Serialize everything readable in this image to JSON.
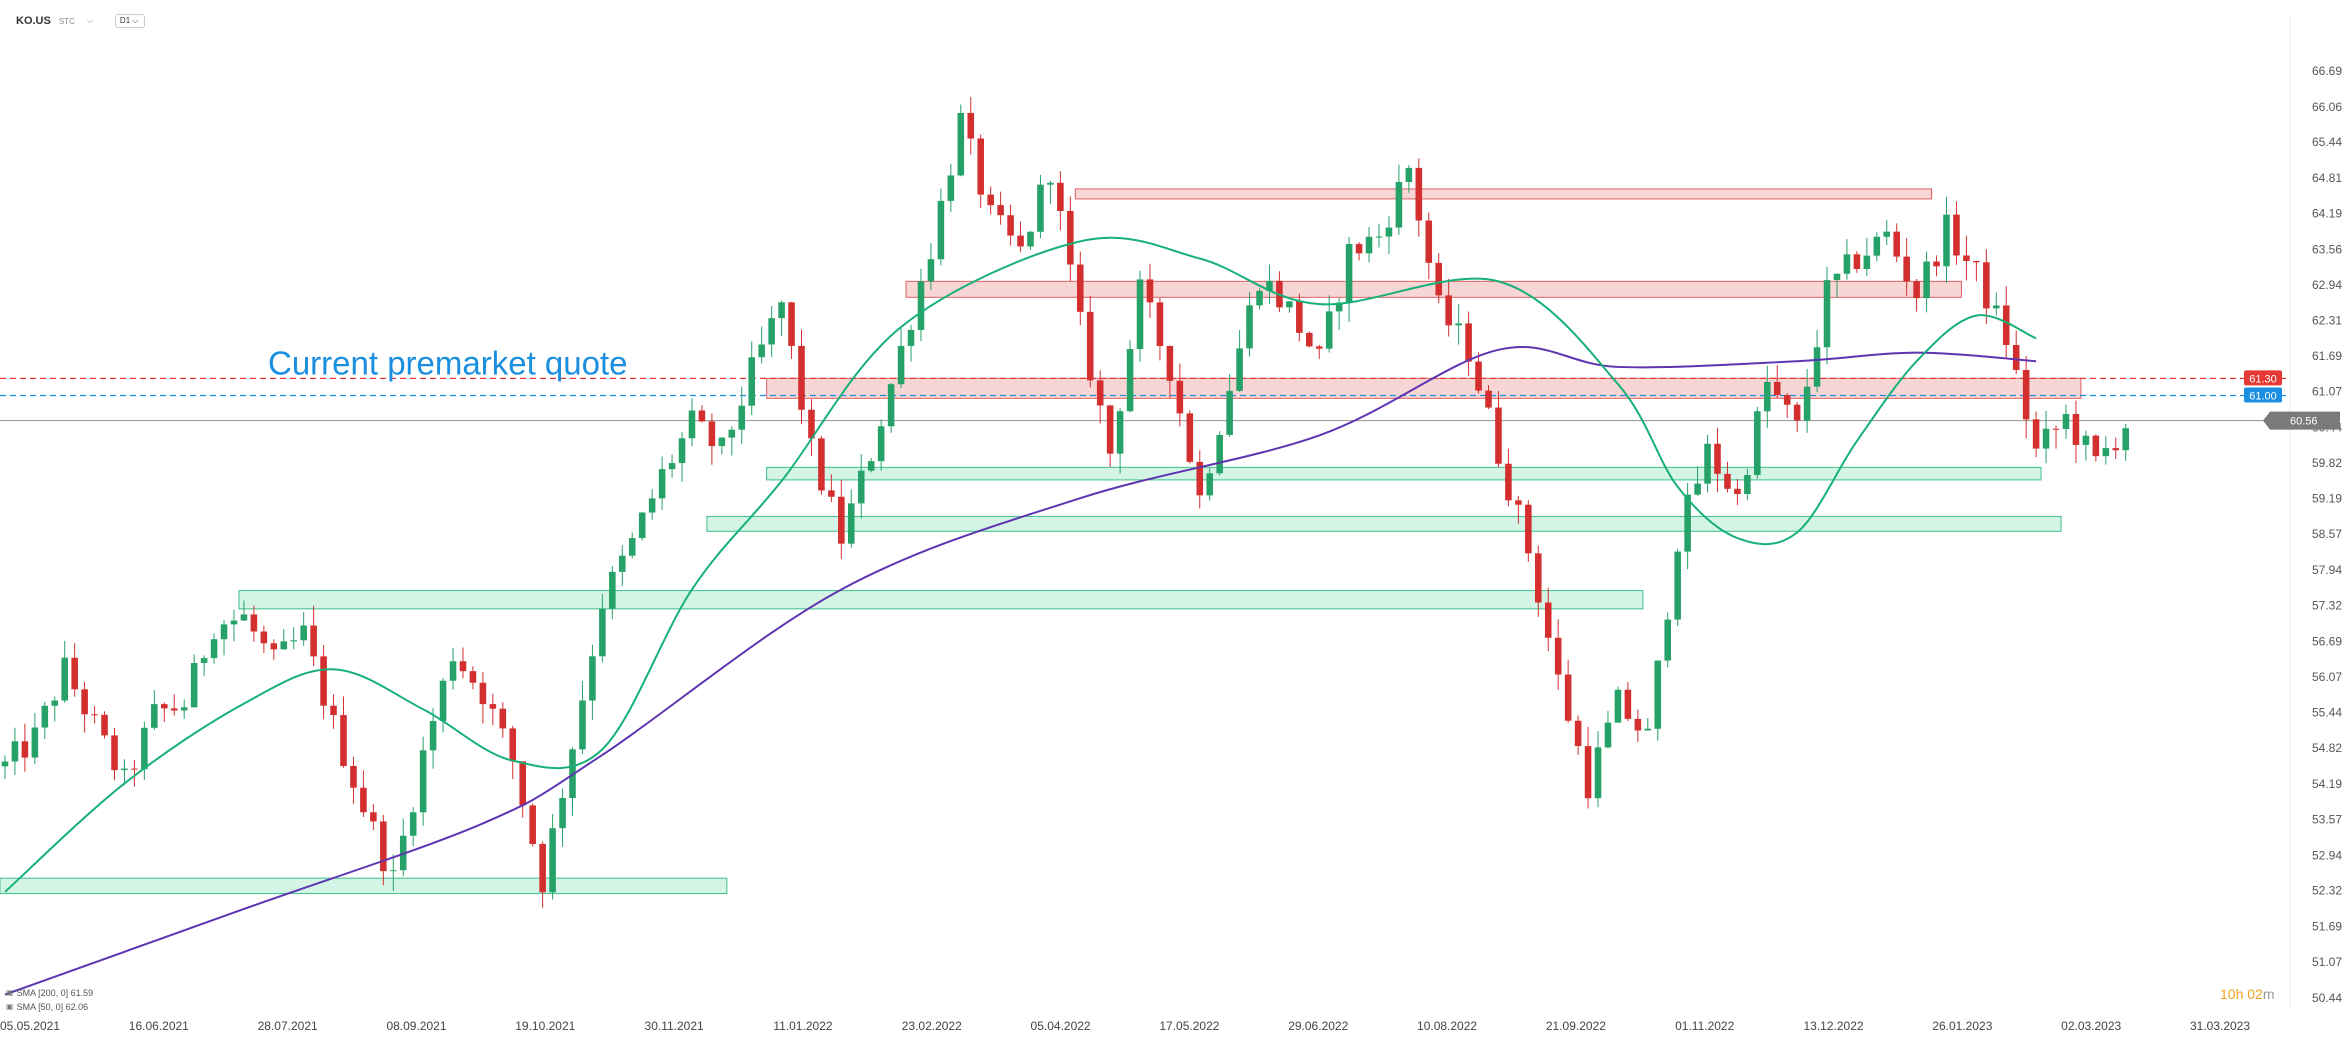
{
  "header": {
    "symbol": "KO.US",
    "type": "STC",
    "chevron": "chevron-down-icon",
    "timeframe": "D1",
    "timeframe_chevron": "chevron-down-icon"
  },
  "annotation": {
    "text": "Current premarket quote",
    "color": "#1a8fe0"
  },
  "price_labels": {
    "red": {
      "value": "61.30",
      "color": "#e53935"
    },
    "blue": {
      "value": "61.00",
      "color": "#1a8fe0"
    },
    "current": {
      "value": "60.56",
      "color": "#7a7a7a"
    }
  },
  "legend": [
    {
      "icon": "eye-icon",
      "label": "SMA [200, 0] 61.59",
      "color": "#5e35b1"
    },
    {
      "icon": "eye-icon",
      "label": "SMA [50, 0] 62.06",
      "color": "#17b07a"
    }
  ],
  "countdown": {
    "hours": "10h",
    "minutes": "02",
    "unit": "m"
  },
  "colors": {
    "bull": "#26a269",
    "bear": "#d32f2f",
    "sma200": "#5e35b1",
    "sma50": "#17b07a",
    "resistance_fill": "#f9d6d6",
    "resistance_stroke": "#e06060",
    "support_fill": "#d4f5e6",
    "support_stroke": "#3cc089"
  },
  "chart_data": {
    "type": "candlestick",
    "symbol": "KO.US",
    "timeframe": "D1",
    "ylim": [
      50.44,
      67.3
    ],
    "y_ticks": [
      66.69,
      66.06,
      65.44,
      64.81,
      64.19,
      63.56,
      62.94,
      62.31,
      61.69,
      61.07,
      60.44,
      59.82,
      59.19,
      58.57,
      57.94,
      57.32,
      56.69,
      56.07,
      55.44,
      54.82,
      54.19,
      53.57,
      52.94,
      52.32,
      51.69,
      51.07,
      50.44
    ],
    "x_tick_labels": [
      "05.05.2021",
      "16.06.2021",
      "28.07.2021",
      "08.09.2021",
      "19.10.2021",
      "30.11.2021",
      "11.01.2022",
      "23.02.2022",
      "05.04.2022",
      "17.05.2022",
      "29.06.2022",
      "10.08.2022",
      "21.09.2022",
      "01.11.2022",
      "13.12.2022",
      "26.01.2023",
      "02.03.2023",
      "31.03.2023"
    ],
    "price_path": [
      [
        0,
        54.5
      ],
      [
        3,
        55.0
      ],
      [
        6,
        56.2
      ],
      [
        9,
        55.2
      ],
      [
        12,
        54.2
      ],
      [
        15,
        55.4
      ],
      [
        18,
        55.6
      ],
      [
        21,
        57.0
      ],
      [
        24,
        57.1
      ],
      [
        27,
        56.3
      ],
      [
        30,
        56.8
      ],
      [
        33,
        55.2
      ],
      [
        36,
        53.8
      ],
      [
        39,
        52.5
      ],
      [
        42,
        54.7
      ],
      [
        45,
        56.5
      ],
      [
        48,
        55.8
      ],
      [
        51,
        54.6
      ],
      [
        54,
        52.5
      ],
      [
        57,
        54.9
      ],
      [
        60,
        57.4
      ],
      [
        63,
        58.4
      ],
      [
        66,
        59.6
      ],
      [
        69,
        60.5
      ],
      [
        72,
        60.0
      ],
      [
        75,
        61.4
      ],
      [
        78,
        62.6
      ],
      [
        81,
        60.0
      ],
      [
        84,
        58.5
      ],
      [
        87,
        60.0
      ],
      [
        90,
        61.8
      ],
      [
        93,
        63.6
      ],
      [
        96,
        65.8
      ],
      [
        99,
        64.1
      ],
      [
        102,
        63.5
      ],
      [
        105,
        65.0
      ],
      [
        108,
        62.2
      ],
      [
        111,
        60.0
      ],
      [
        114,
        62.8
      ],
      [
        117,
        61.5
      ],
      [
        120,
        59.2
      ],
      [
        123,
        61.2
      ],
      [
        126,
        63.1
      ],
      [
        129,
        62.5
      ],
      [
        132,
        61.6
      ],
      [
        135,
        63.5
      ],
      [
        138,
        63.8
      ],
      [
        141,
        65.0
      ],
      [
        144,
        62.5
      ],
      [
        147,
        61.8
      ],
      [
        150,
        60.0
      ],
      [
        153,
        58.3
      ],
      [
        156,
        56.0
      ],
      [
        159,
        54.2
      ],
      [
        162,
        55.6
      ],
      [
        165,
        55.0
      ],
      [
        168,
        58.5
      ],
      [
        171,
        60.0
      ],
      [
        174,
        59.2
      ],
      [
        177,
        61.2
      ],
      [
        180,
        60.4
      ],
      [
        183,
        62.8
      ],
      [
        186,
        63.4
      ],
      [
        189,
        63.8
      ],
      [
        192,
        62.8
      ],
      [
        195,
        63.9
      ],
      [
        198,
        63.1
      ],
      [
        201,
        62.0
      ],
      [
        204,
        60.0
      ],
      [
        207,
        60.6
      ],
      [
        210,
        59.8
      ],
      [
        213,
        60.5
      ]
    ],
    "series": [
      {
        "name": "SMA [200, 0] 61.59",
        "x": [
          0,
          24,
          48,
          60,
          84,
          108,
          132,
          150,
          162,
          180,
          192,
          204
        ],
        "values": [
          50.5,
          52.0,
          53.5,
          54.7,
          57.6,
          59.2,
          60.3,
          61.8,
          61.5,
          61.6,
          61.75,
          61.6
        ]
      },
      {
        "name": "SMA [50, 0] 62.06",
        "x": [
          0,
          12,
          24,
          33,
          42,
          51,
          60,
          69,
          78,
          90,
          108,
          120,
          132,
          150,
          162,
          168,
          174,
          180,
          186,
          192,
          198,
          204
        ],
        "values": [
          52.3,
          54.2,
          55.6,
          56.2,
          55.5,
          54.6,
          54.8,
          57.6,
          59.5,
          62.2,
          63.7,
          63.4,
          62.6,
          63.0,
          61.2,
          59.4,
          58.5,
          58.6,
          60.2,
          61.6,
          62.4,
          62.0
        ]
      }
    ],
    "zones": {
      "resistance": [
        {
          "x": [
            108,
            194
          ],
          "y": [
            64.45,
            64.62
          ]
        },
        {
          "x": [
            91,
            197
          ],
          "y": [
            62.72,
            63.0
          ]
        },
        {
          "x": [
            77,
            209
          ],
          "y": [
            60.95,
            61.3
          ]
        }
      ],
      "support": [
        {
          "x": [
            77,
            205
          ],
          "y": [
            59.52,
            59.74
          ]
        },
        {
          "x": [
            71,
            207
          ],
          "y": [
            58.62,
            58.88
          ]
        },
        {
          "x": [
            24,
            165
          ],
          "y": [
            57.26,
            57.58
          ]
        },
        {
          "x": [
            0,
            73
          ],
          "y": [
            52.27,
            52.54
          ]
        }
      ]
    },
    "levels": [
      {
        "value": 61.3,
        "style": "dashed",
        "color": "#e53935"
      },
      {
        "value": 61.0,
        "style": "dashed",
        "color": "#1a8fe0"
      },
      {
        "value": 60.56,
        "style": "solid",
        "color": "#9e9e9e"
      }
    ]
  }
}
